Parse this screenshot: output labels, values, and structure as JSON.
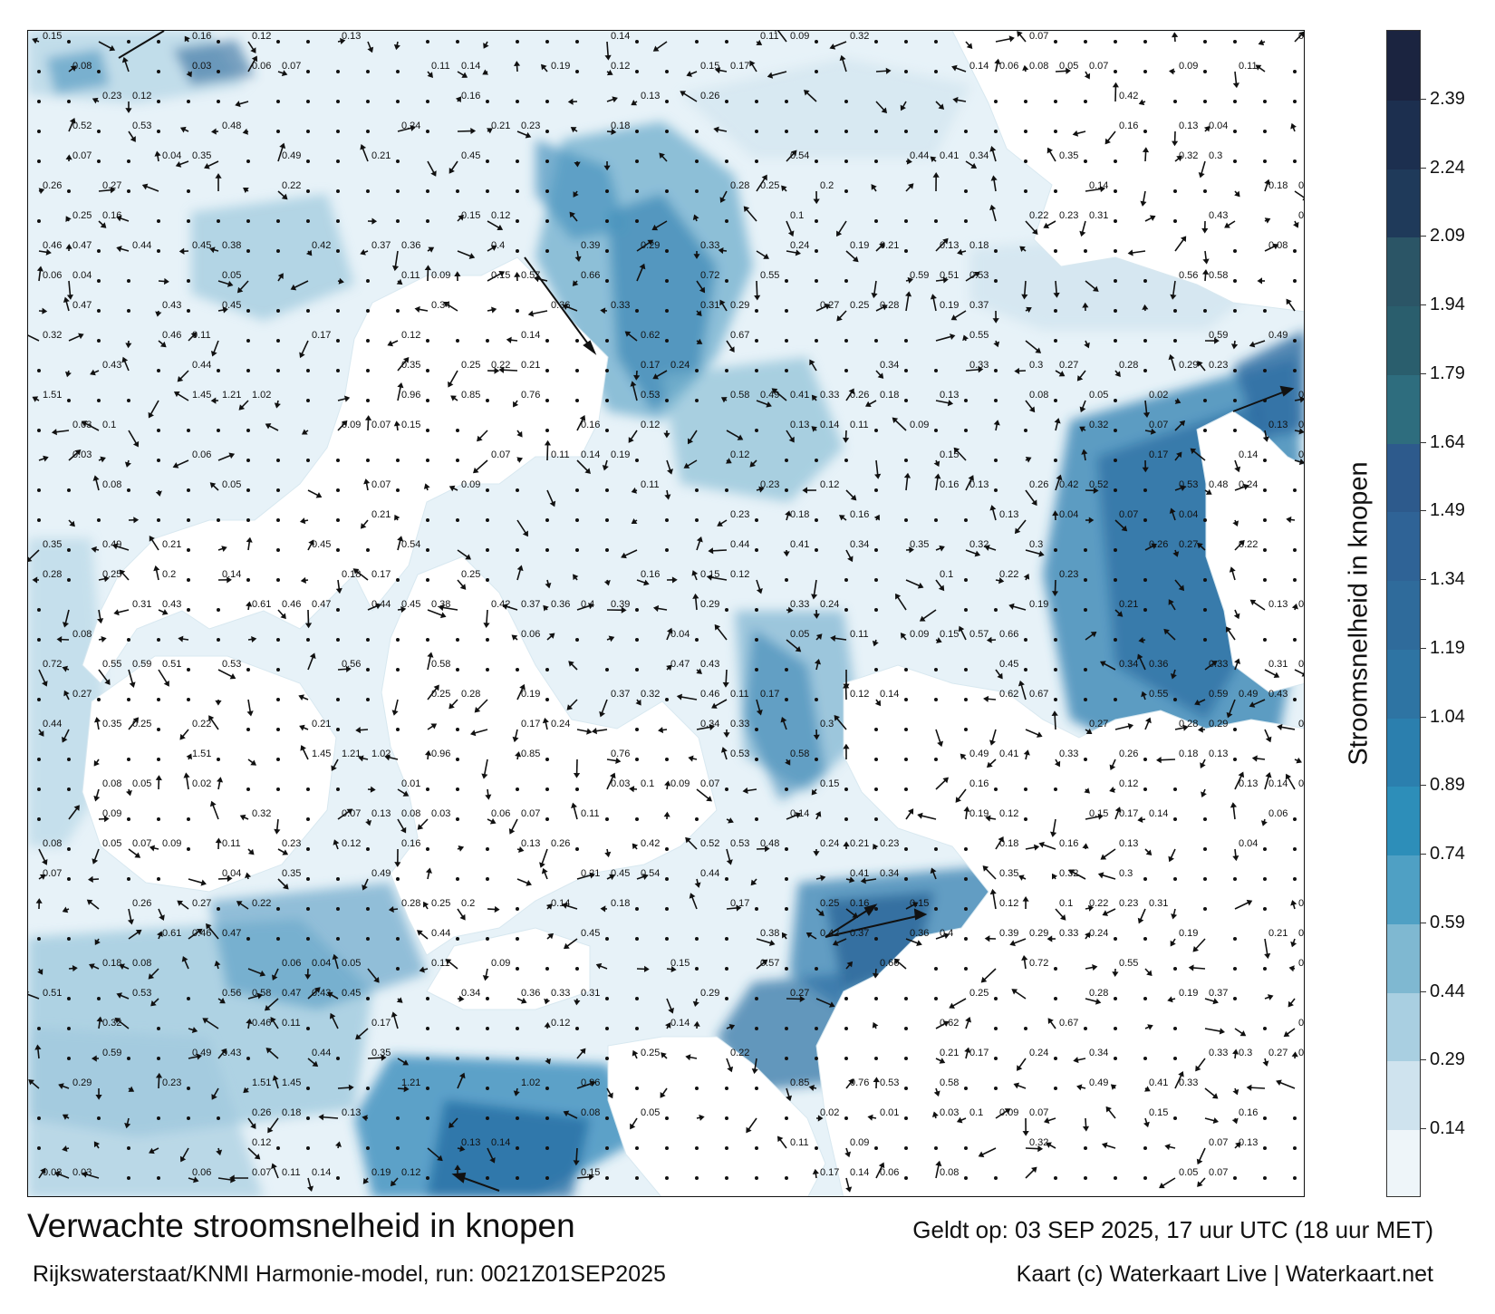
{
  "map": {
    "title": "Verwachte stroomsnelheid in knopen",
    "source": "Rijkswaterstaat/KNMI Harmonie-model, run: 0021Z01SEP2025",
    "valid_time": "Geldt op: 03 SEP 2025, 17 uur UTC (18 uur MET)",
    "credits": "Kaart (c) Waterkaart Live | Waterkaart.net"
  },
  "legend": {
    "label": "Stroomsnelheid in knopen",
    "ticks": [
      "0.14",
      "0.29",
      "0.44",
      "0.59",
      "0.74",
      "0.89",
      "1.04",
      "1.19",
      "1.34",
      "1.49",
      "1.64",
      "1.79",
      "1.94",
      "2.09",
      "2.24",
      "2.39"
    ],
    "colors": [
      "#eef5f9",
      "#cfe3ee",
      "#a9cfe1",
      "#7fb8d1",
      "#4fa0c4",
      "#2d8eb9",
      "#2b7fae",
      "#2e74a3",
      "#2f6b9b",
      "#2f6396",
      "#2d5a8c",
      "#2e6d7e",
      "#2a5e6d",
      "#2b5566",
      "#1f3a5a",
      "#1c2f4f",
      "#1b2440"
    ]
  },
  "colors": {
    "land": "#ffffff",
    "water_light": "#e9f3f8",
    "water_mid": "#a9cfe1",
    "water_deep": "#2f6b9b",
    "arrow": "#111111"
  },
  "speed_labels": [
    "0.15",
    "0.16",
    "0.12",
    "0.13",
    "0.14",
    "0.11",
    "0.09",
    "0.32",
    "0.07",
    "0.13",
    "0.08",
    "0.03",
    "0.06",
    "0.07",
    "0.11",
    "0.14",
    "0.19",
    "0.12",
    "0.15",
    "0.17",
    "0.14",
    "0.06",
    "0.08",
    "0.05",
    "0.07",
    "0.09",
    "0.11",
    "0.23",
    "0.12",
    "0.16",
    "0.13",
    "0.26",
    "0.42",
    "0.52",
    "0.53",
    "0.48",
    "0.24",
    "0.21",
    "0.23",
    "0.18",
    "0.16",
    "0.13",
    "0.04",
    "0.07",
    "0.04",
    "0.35",
    "0.49",
    "0.21",
    "0.45",
    "0.54",
    "0.44",
    "0.41",
    "0.34",
    "0.35",
    "0.32",
    "0.3",
    "0.26",
    "0.27",
    "0.22",
    "0.28",
    "0.25",
    "0.2",
    "0.14",
    "0.18",
    "0.17",
    "0.25",
    "0.16",
    "0.15",
    "0.12",
    "0.1",
    "0.22",
    "0.23",
    "0.31",
    "0.43",
    "0.61",
    "0.46",
    "0.47",
    "0.44",
    "0.45",
    "0.38",
    "0.42",
    "0.37",
    "0.36",
    "0.4",
    "0.39",
    "0.29",
    "0.33",
    "0.24",
    "0.19",
    "0.21",
    "0.13",
    "0.18",
    "0.08",
    "0.06",
    "0.04",
    "0.05",
    "0.11",
    "0.09",
    "0.15",
    "0.57",
    "0.66",
    "0.72",
    "0.55",
    "0.59",
    "0.51",
    "0.53",
    "0.56",
    "0.58",
    "0.47",
    "0.43",
    "0.45",
    "0.34",
    "0.36",
    "0.33",
    "0.31",
    "0.29",
    "0.27",
    "0.25",
    "0.28",
    "0.19",
    "0.37",
    "0.32",
    "0.46",
    "0.11",
    "0.17",
    "0.12",
    "0.14",
    "0.62",
    "0.67",
    "0.55",
    "0.59",
    "0.49",
    "0.43",
    "0.44",
    "0.35",
    "0.25",
    "0.22",
    "0.21",
    "0.17",
    "0.24",
    "0.34",
    "0.33",
    "0.3",
    "0.27",
    "0.28",
    "0.29",
    "0.23",
    "1.51",
    "1.45",
    "1.21",
    "1.02",
    "0.96",
    "0.85",
    "0.76",
    "0.53",
    "0.58",
    "0.49",
    "0.41",
    "0.33",
    "0.26",
    "0.18",
    "0.13",
    "0.08",
    "0.05",
    "0.02",
    "0.01",
    "0.03",
    "0.1",
    "0.09",
    "0.07"
  ]
}
